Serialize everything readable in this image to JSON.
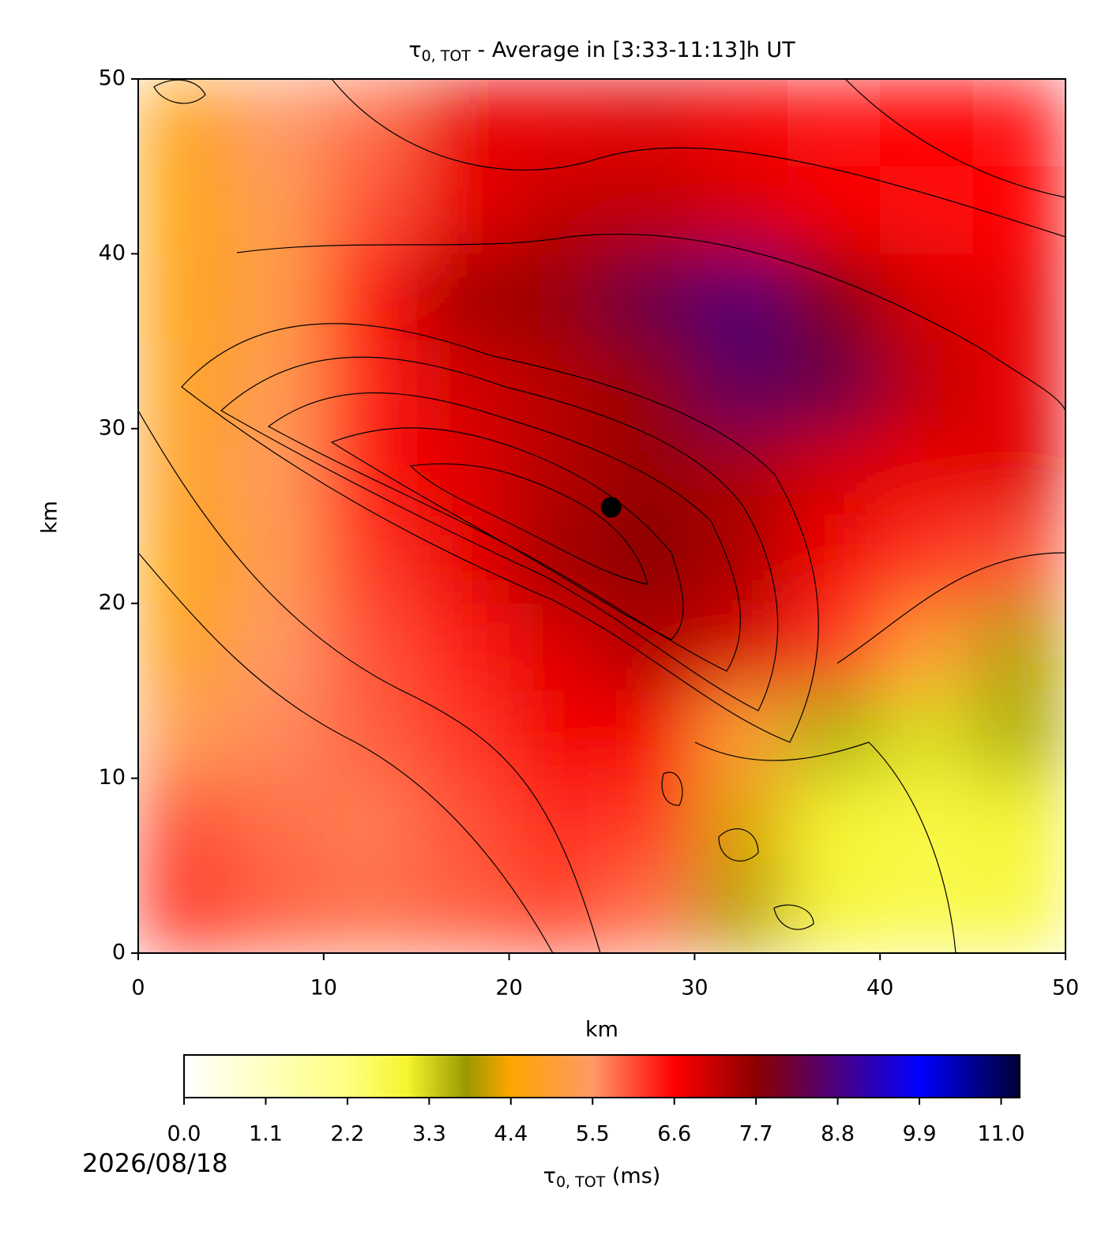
{
  "chart_data": {
    "type": "heatmap",
    "title_symbol": "τ",
    "title_subscript": "0, TOT",
    "title_rest": " - Average in [3:33-11:13]h UT",
    "xlabel": "km",
    "ylabel": "km",
    "xlim": [
      0,
      50
    ],
    "ylim": [
      0,
      50
    ],
    "xticks": [
      0,
      10,
      20,
      30,
      40,
      50
    ],
    "yticks": [
      0,
      10,
      20,
      30,
      40,
      50
    ],
    "z": [
      [
        4.6,
        5.5,
        5.8,
        6.8,
        6.8,
        6.9,
        6.7,
        6.5,
        6.6,
        6.5
      ],
      [
        4.5,
        5.3,
        6.0,
        6.8,
        7.2,
        7.2,
        7.0,
        6.7,
        6.5,
        6.6
      ],
      [
        4.6,
        5.2,
        6.5,
        7.5,
        7.6,
        8.3,
        8.7,
        7.8,
        7.0,
        6.8
      ],
      [
        4.7,
        5.3,
        6.4,
        7.0,
        7.3,
        7.6,
        8.5,
        8.3,
        7.2,
        6.8
      ],
      [
        4.8,
        5.4,
        6.5,
        6.9,
        7.3,
        7.6,
        7.4,
        7.0,
        6.8,
        6.9
      ],
      [
        4.5,
        5.3,
        6.2,
        6.8,
        7.5,
        7.7,
        7.4,
        6.7,
        6.2,
        6.0
      ],
      [
        4.7,
        5.5,
        6.0,
        6.4,
        6.9,
        7.4,
        7.0,
        6.2,
        5.0,
        4.0
      ],
      [
        5.3,
        5.6,
        5.9,
        6.2,
        6.7,
        6.7,
        5.0,
        3.6,
        3.2,
        3.6
      ],
      [
        6.0,
        5.8,
        5.7,
        6.0,
        6.3,
        6.2,
        4.2,
        3.0,
        2.8,
        3.0
      ],
      [
        6.2,
        5.9,
        5.8,
        5.9,
        6.1,
        5.8,
        4.0,
        2.9,
        2.7,
        2.8
      ]
    ],
    "marker": {
      "x": 25.5,
      "y": 25.5,
      "color": "#000000"
    },
    "colormap": [
      [
        0,
        "#ffffff"
      ],
      [
        2.2,
        "#ffff80"
      ],
      [
        3.0,
        "#f5f530"
      ],
      [
        3.8,
        "#999900"
      ],
      [
        4.4,
        "#ffa500"
      ],
      [
        5.5,
        "#ff9966"
      ],
      [
        6.6,
        "#ff0000"
      ],
      [
        7.7,
        "#8b0000"
      ],
      [
        8.8,
        "#4b0082"
      ],
      [
        9.9,
        "#0000ff"
      ],
      [
        11.25,
        "#000033"
      ]
    ],
    "colorbar": {
      "lim": [
        0,
        11.25
      ],
      "ticks": [
        {
          "value": 0,
          "label": "0.0"
        },
        {
          "value": 1.1,
          "label": "1.1"
        },
        {
          "value": 2.2,
          "label": "2.2"
        },
        {
          "value": 3.3,
          "label": "3.3"
        },
        {
          "value": 4.4,
          "label": "4.4"
        },
        {
          "value": 5.5,
          "label": "5.5"
        },
        {
          "value": 6.6,
          "label": "6.6"
        },
        {
          "value": 7.7,
          "label": "7.7"
        },
        {
          "value": 8.8,
          "label": "8.8"
        },
        {
          "value": 9.9,
          "label": "9.9"
        },
        {
          "value": 11.0,
          "label": "11.0"
        }
      ],
      "label_symbol": "τ",
      "label_subscript": "0, TOT",
      "label_rest": " (ms)"
    },
    "date": "2026/08/18"
  }
}
